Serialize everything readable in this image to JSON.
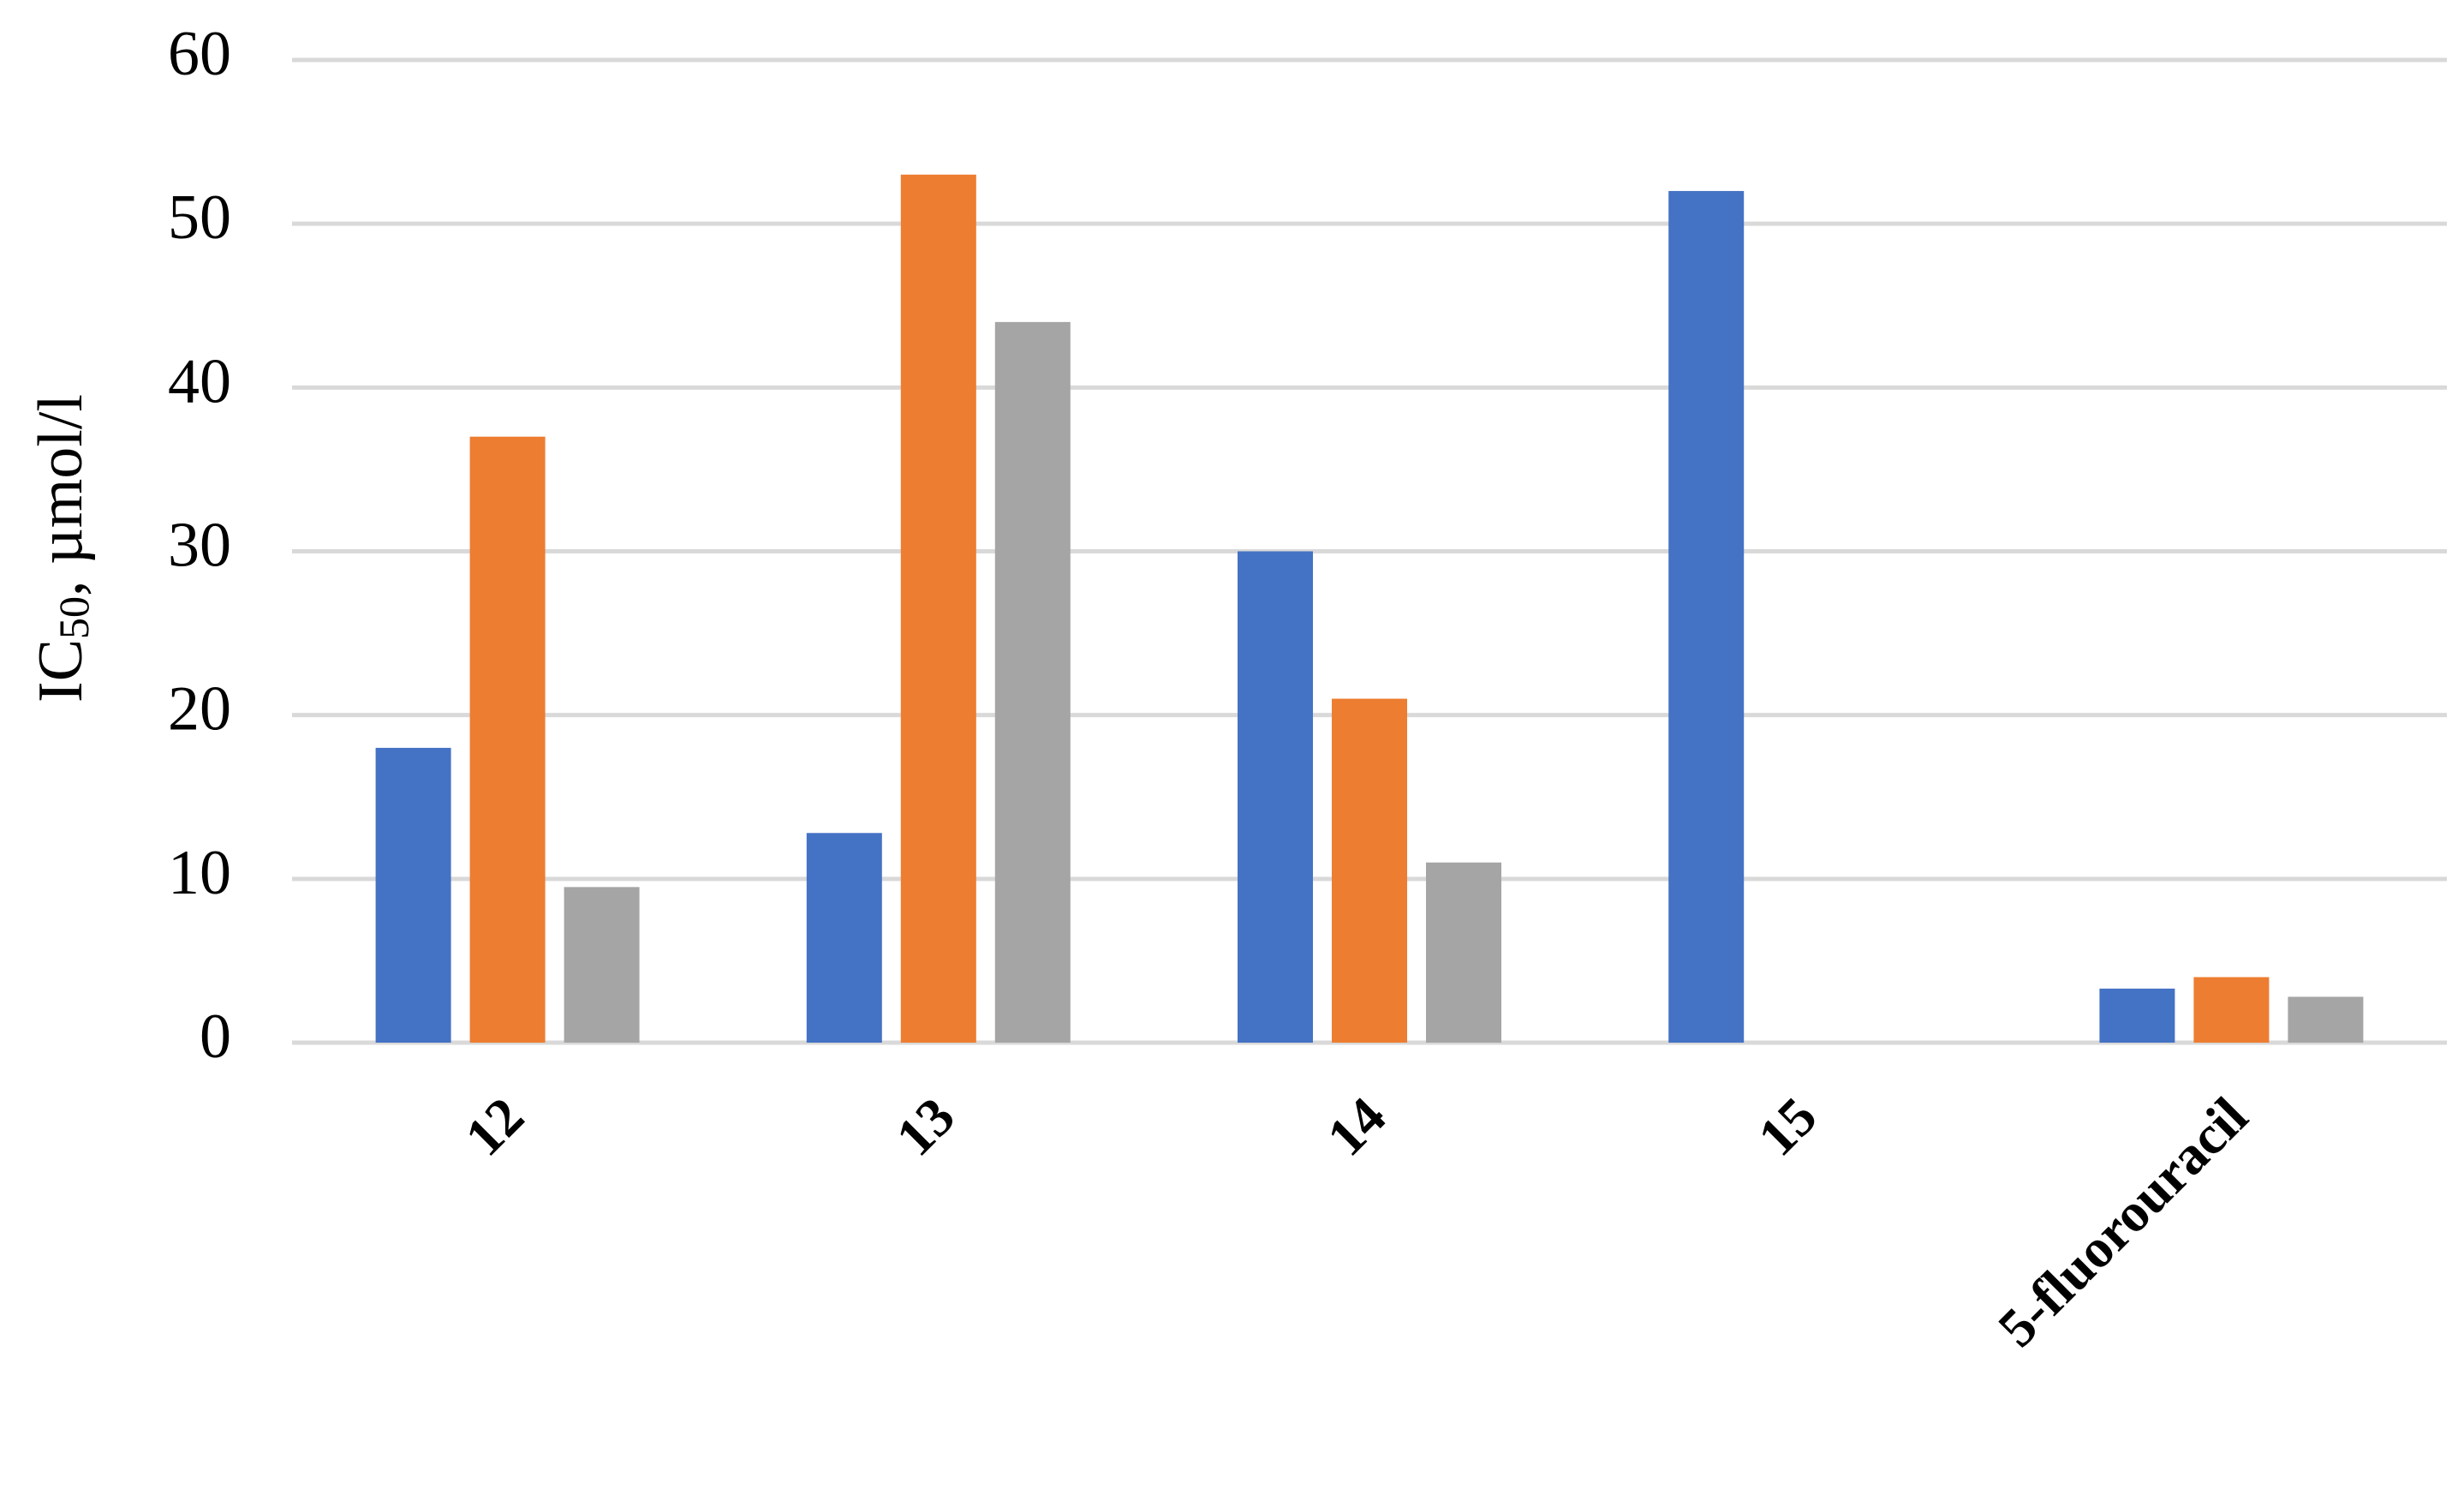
{
  "chart_data": {
    "type": "bar",
    "y_label": {
      "main": "IC",
      "sub": "50",
      "rest": ", µmol/l"
    },
    "categories": [
      "12",
      "13",
      "14",
      "15",
      "5-fluorouracil"
    ],
    "series": [
      {
        "color": "#4472c4",
        "values": [
          18,
          12.8,
          30,
          52,
          3.3
        ]
      },
      {
        "color": "#ed7d31",
        "values": [
          37,
          53,
          21,
          null,
          4
        ]
      },
      {
        "color": "#a5a5a5",
        "values": [
          9.5,
          44,
          11,
          null,
          2.8
        ]
      }
    ],
    "ylim": [
      0,
      60
    ],
    "yticks": [
      0,
      10,
      20,
      30,
      40,
      50,
      60
    ],
    "grid": true
  }
}
